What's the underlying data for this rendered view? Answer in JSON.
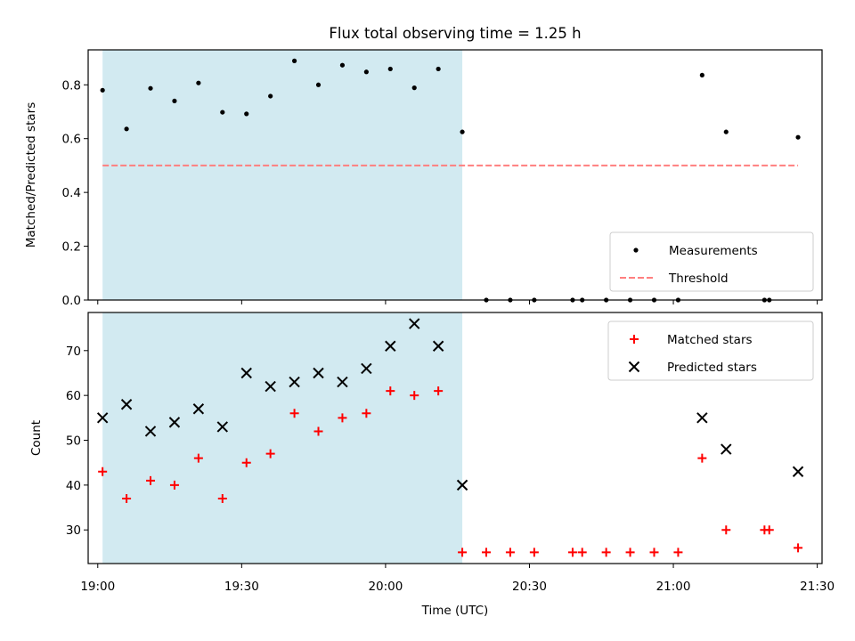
{
  "chart_data": {
    "title": "Flux total observing time = 1.25 h",
    "xlabel": "Time (UTC)",
    "x_unit": "HH:MM (UTC)",
    "xlim": [
      "18:58",
      "21:31"
    ],
    "xticks": [
      "19:00",
      "19:30",
      "20:00",
      "20:30",
      "21:00",
      "21:30"
    ],
    "shaded_interval": {
      "start": "19:01",
      "end": "20:16",
      "color": "#add8e6"
    },
    "panels": [
      {
        "type": "scatter",
        "ylabel": "Matched/Predicted stars",
        "ylim": [
          0,
          0.93
        ],
        "yticks": [
          "0.0",
          "0.2",
          "0.4",
          "0.6",
          "0.8"
        ],
        "legend_position": "lower-right",
        "series": [
          {
            "name": "Measurements",
            "marker": "dot",
            "color": "#000000",
            "points": [
              {
                "t": "19:01",
                "y": 0.78
              },
              {
                "t": "19:06",
                "y": 0.636
              },
              {
                "t": "19:11",
                "y": 0.787
              },
              {
                "t": "19:16",
                "y": 0.74
              },
              {
                "t": "19:21",
                "y": 0.807
              },
              {
                "t": "19:26",
                "y": 0.698
              },
              {
                "t": "19:31",
                "y": 0.692
              },
              {
                "t": "19:36",
                "y": 0.758
              },
              {
                "t": "19:41",
                "y": 0.889
              },
              {
                "t": "19:46",
                "y": 0.8
              },
              {
                "t": "19:51",
                "y": 0.873
              },
              {
                "t": "19:56",
                "y": 0.848
              },
              {
                "t": "20:01",
                "y": 0.859
              },
              {
                "t": "20:06",
                "y": 0.789
              },
              {
                "t": "20:11",
                "y": 0.859
              },
              {
                "t": "20:16",
                "y": 0.625
              },
              {
                "t": "20:21",
                "y": 0.0
              },
              {
                "t": "20:26",
                "y": 0.0
              },
              {
                "t": "20:31",
                "y": 0.0
              },
              {
                "t": "20:39",
                "y": 0.0
              },
              {
                "t": "20:41",
                "y": 0.0
              },
              {
                "t": "20:46",
                "y": 0.0
              },
              {
                "t": "20:51",
                "y": 0.0
              },
              {
                "t": "20:56",
                "y": 0.0
              },
              {
                "t": "21:01",
                "y": 0.0
              },
              {
                "t": "21:06",
                "y": 0.836
              },
              {
                "t": "21:11",
                "y": 0.625
              },
              {
                "t": "21:19",
                "y": 0.0
              },
              {
                "t": "21:20",
                "y": 0.0
              },
              {
                "t": "21:26",
                "y": 0.605
              }
            ]
          },
          {
            "name": "Threshold",
            "type": "line",
            "style": "dashed",
            "color": "#ff7f7f",
            "y": 0.5,
            "from": "19:01",
            "to": "21:26"
          }
        ]
      },
      {
        "type": "scatter",
        "ylabel": "Count",
        "ylim": [
          22.5,
          78.5
        ],
        "yticks": [
          "30",
          "40",
          "50",
          "60",
          "70"
        ],
        "legend_position": "upper-right",
        "series": [
          {
            "name": "Matched stars",
            "marker": "plus",
            "color": "#ff0000",
            "points": [
              {
                "t": "19:01",
                "y": 43
              },
              {
                "t": "19:06",
                "y": 37
              },
              {
                "t": "19:11",
                "y": 41
              },
              {
                "t": "19:16",
                "y": 40
              },
              {
                "t": "19:21",
                "y": 46
              },
              {
                "t": "19:26",
                "y": 37
              },
              {
                "t": "19:31",
                "y": 45
              },
              {
                "t": "19:36",
                "y": 47
              },
              {
                "t": "19:41",
                "y": 56
              },
              {
                "t": "19:46",
                "y": 52
              },
              {
                "t": "19:51",
                "y": 55
              },
              {
                "t": "19:56",
                "y": 56
              },
              {
                "t": "20:01",
                "y": 61
              },
              {
                "t": "20:06",
                "y": 60
              },
              {
                "t": "20:11",
                "y": 61
              },
              {
                "t": "20:16",
                "y": 25
              },
              {
                "t": "20:21",
                "y": 25
              },
              {
                "t": "20:26",
                "y": 25
              },
              {
                "t": "20:31",
                "y": 25
              },
              {
                "t": "20:39",
                "y": 25
              },
              {
                "t": "20:41",
                "y": 25
              },
              {
                "t": "20:46",
                "y": 25
              },
              {
                "t": "20:51",
                "y": 25
              },
              {
                "t": "20:56",
                "y": 25
              },
              {
                "t": "21:01",
                "y": 25
              },
              {
                "t": "21:06",
                "y": 46
              },
              {
                "t": "21:11",
                "y": 30
              },
              {
                "t": "21:19",
                "y": 30
              },
              {
                "t": "21:20",
                "y": 30
              },
              {
                "t": "21:26",
                "y": 26
              }
            ]
          },
          {
            "name": "Predicted stars",
            "marker": "x",
            "color": "#000000",
            "points": [
              {
                "t": "19:01",
                "y": 55
              },
              {
                "t": "19:06",
                "y": 58
              },
              {
                "t": "19:11",
                "y": 52
              },
              {
                "t": "19:16",
                "y": 54
              },
              {
                "t": "19:21",
                "y": 57
              },
              {
                "t": "19:26",
                "y": 53
              },
              {
                "t": "19:31",
                "y": 65
              },
              {
                "t": "19:36",
                "y": 62
              },
              {
                "t": "19:41",
                "y": 63
              },
              {
                "t": "19:46",
                "y": 65
              },
              {
                "t": "19:51",
                "y": 63
              },
              {
                "t": "19:56",
                "y": 66
              },
              {
                "t": "20:01",
                "y": 71
              },
              {
                "t": "20:06",
                "y": 76
              },
              {
                "t": "20:11",
                "y": 71
              },
              {
                "t": "20:16",
                "y": 40
              },
              {
                "t": "21:06",
                "y": 55
              },
              {
                "t": "21:11",
                "y": 48
              },
              {
                "t": "21:26",
                "y": 43
              }
            ]
          }
        ]
      }
    ]
  }
}
